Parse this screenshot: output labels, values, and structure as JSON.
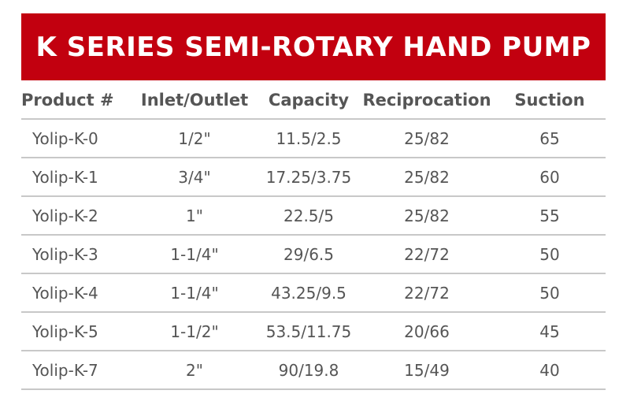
{
  "header": {
    "title": "K SERIES SEMI-ROTARY HAND PUMP"
  },
  "table": {
    "columns": [
      "Product #",
      "Inlet/Outlet",
      "Capacity",
      "Reciprocation",
      "Suction"
    ],
    "rows": [
      [
        "Yolip-K-0",
        "1/2\"",
        "11.5/2.5",
        "25/82",
        "65"
      ],
      [
        "Yolip-K-1",
        "3/4\"",
        "17.25/3.75",
        "25/82",
        "60"
      ],
      [
        "Yolip-K-2",
        "1\"",
        "22.5/5",
        "25/82",
        "55"
      ],
      [
        "Yolip-K-3",
        "1-1/4\"",
        "29/6.5",
        "22/72",
        "50"
      ],
      [
        "Yolip-K-4",
        "1-1/4\"",
        "43.25/9.5",
        "22/72",
        "50"
      ],
      [
        "Yolip-K-5",
        "1-1/2\"",
        "53.5/11.75",
        "20/66",
        "45"
      ],
      [
        "Yolip-K-7",
        "2\"",
        "90/19.8",
        "15/49",
        "40"
      ]
    ]
  }
}
